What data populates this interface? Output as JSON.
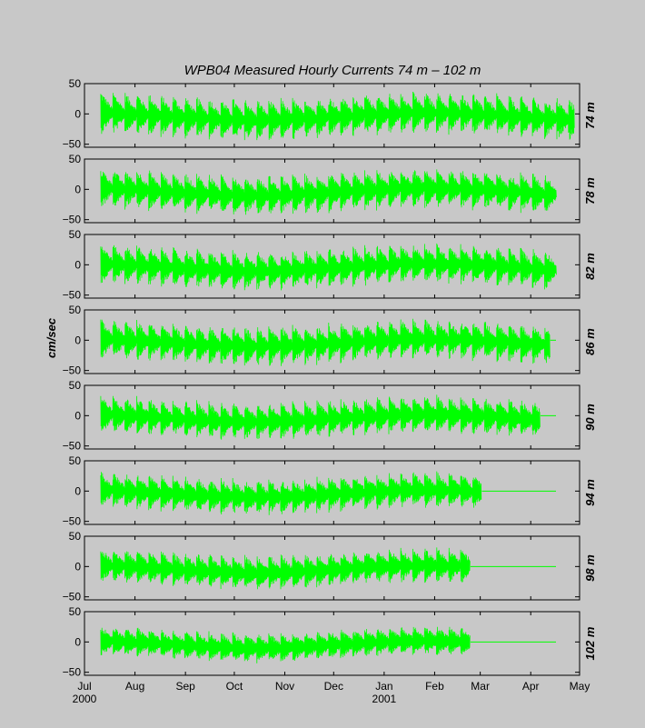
{
  "chart_data": {
    "type": "line",
    "title": "WPB04   Measured Hourly Currents   74 m – 102 m",
    "ylabel": "cm/sec",
    "ylim": [
      -55,
      50
    ],
    "yticks": [
      50,
      0,
      -50
    ],
    "ytick_labels": [
      "50",
      "0",
      "−50"
    ],
    "xlim": [
      "2000-07-01",
      "2001-05-01"
    ],
    "x_tick_labels": [
      {
        "date": "2000-07-01",
        "label": "Jul",
        "sub": "2000"
      },
      {
        "date": "2000-08-01",
        "label": "Aug",
        "sub": ""
      },
      {
        "date": "2000-09-01",
        "label": "Sep",
        "sub": ""
      },
      {
        "date": "2000-10-01",
        "label": "Oct",
        "sub": ""
      },
      {
        "date": "2000-11-01",
        "label": "Nov",
        "sub": ""
      },
      {
        "date": "2000-12-01",
        "label": "Dec",
        "sub": ""
      },
      {
        "date": "2001-01-01",
        "label": "Jan",
        "sub": "2001"
      },
      {
        "date": "2001-02-01",
        "label": "Feb",
        "sub": ""
      },
      {
        "date": "2001-03-01",
        "label": "Mar",
        "sub": ""
      },
      {
        "date": "2001-04-01",
        "label": "Apr",
        "sub": ""
      },
      {
        "date": "2001-05-01",
        "label": "May",
        "sub": ""
      }
    ],
    "grid": false,
    "legend": "none",
    "series_color": "#00ff00",
    "series": [
      {
        "name": "74 m",
        "start": "2000-07-11",
        "end": "2001-04-28",
        "amplitude": 32
      },
      {
        "name": "78 m",
        "start": "2000-07-11",
        "end": "2001-04-17",
        "amplitude": 30
      },
      {
        "name": "82 m",
        "start": "2000-07-11",
        "end": "2001-04-17",
        "amplitude": 30
      },
      {
        "name": "86 m",
        "start": "2000-07-11",
        "end": "2001-04-13",
        "amplitude": 30
      },
      {
        "name": "90 m",
        "start": "2000-07-11",
        "end": "2001-04-07",
        "amplitude": 28
      },
      {
        "name": "94 m",
        "start": "2000-07-11",
        "end": "2001-03-02",
        "amplitude": 26
      },
      {
        "name": "98 m",
        "start": "2000-07-11",
        "end": "2001-02-23",
        "amplitude": 25
      },
      {
        "name": "102 m",
        "start": "2000-07-11",
        "end": "2001-02-23",
        "amplitude": 20
      }
    ]
  }
}
